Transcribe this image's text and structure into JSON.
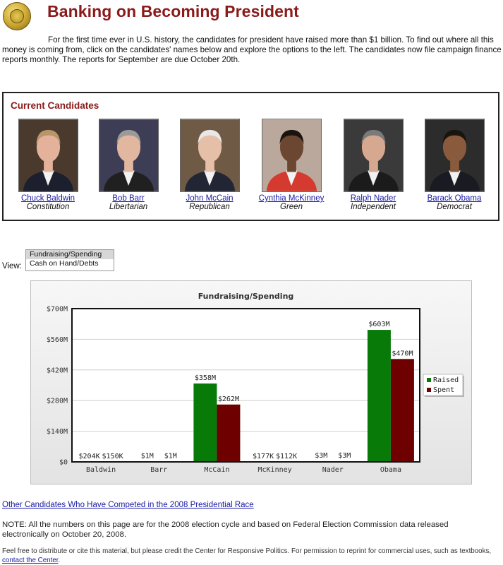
{
  "page": {
    "title": "Banking on Becoming President",
    "intro": "For the first time ever in U.S. history, the candidates for president have raised more than $1 billion. To find out where all this money is coming from, click on the candidates' names below and explore the options to the left. The candidates now file campaign finance reports monthly. The reports for September are due October 20th."
  },
  "candidates": {
    "heading": "Current Candidates",
    "items": [
      {
        "name": "Chuck Baldwin",
        "party": "Constitution",
        "bg": "#4a3a2e",
        "skin": "#e4b29a",
        "hair": "#b8956a",
        "suit": "#1c1f2e"
      },
      {
        "name": "Bob Barr",
        "party": "Libertarian",
        "bg": "#3d3d55",
        "skin": "#e2b7a0",
        "hair": "#9a9a9a",
        "suit": "#202020"
      },
      {
        "name": "John McCain",
        "party": "Republican",
        "bg": "#6f5a45",
        "skin": "#e6bfa8",
        "hair": "#e8e8e8",
        "suit": "#222634"
      },
      {
        "name": "Cynthia McKinney",
        "party": "Green",
        "bg": "#b9a89b",
        "skin": "#6b4630",
        "hair": "#1a1410",
        "suit": "#d43a2f"
      },
      {
        "name": "Ralph Nader",
        "party": "Independent",
        "bg": "#3a3a3a",
        "skin": "#d7a890",
        "hair": "#7a7a7a",
        "suit": "#1b1b1b"
      },
      {
        "name": "Barack Obama",
        "party": "Democrat",
        "bg": "#2c2c2c",
        "skin": "#8a5a3c",
        "hair": "#1a1410",
        "suit": "#1a1a22"
      }
    ]
  },
  "view": {
    "label": "View:",
    "options": [
      "Fundraising/Spending",
      "Cash on Hand/Debts"
    ],
    "selected": "Fundraising/Spending"
  },
  "chart_data": {
    "type": "bar",
    "title": "Fundraising/Spending",
    "categories": [
      "Baldwin",
      "Barr",
      "McCain",
      "McKinney",
      "Nader",
      "Obama"
    ],
    "series": [
      {
        "name": "Raised",
        "color": "#087a08",
        "values": [
          0.204,
          1,
          358,
          0.177,
          3,
          603
        ],
        "labels": [
          "$204K",
          "$1M",
          "$358M",
          "$177K",
          "$3M",
          "$603M"
        ]
      },
      {
        "name": "Spent",
        "color": "#6e0000",
        "values": [
          0.15,
          1,
          262,
          0.112,
          3,
          470
        ],
        "labels": [
          "$150K",
          "$1M",
          "$262M",
          "$112K",
          "$3M",
          "$470M"
        ]
      }
    ],
    "unit": "millions of dollars",
    "ylim": [
      0,
      700
    ],
    "yticks": [
      0,
      140,
      280,
      420,
      560,
      700
    ],
    "ytick_labels": [
      "$0",
      "$140M",
      "$280M",
      "$420M",
      "$560M",
      "$700M"
    ],
    "grid": true,
    "legend_position": "right"
  },
  "links": {
    "other_candidates": "Other Candidates Who Have Competed in the 2008 Presidential Race"
  },
  "note": "NOTE: All the numbers on this page are for the 2008 election cycle and based on Federal Election Commission data released electronically on October 20, 2008.",
  "footer": {
    "text": "Feel free to distribute or cite this material, but please credit the Center for Responsive Politics. For permission to reprint for commercial uses, such as textbooks, ",
    "link": "contact the Center",
    "end": "."
  }
}
